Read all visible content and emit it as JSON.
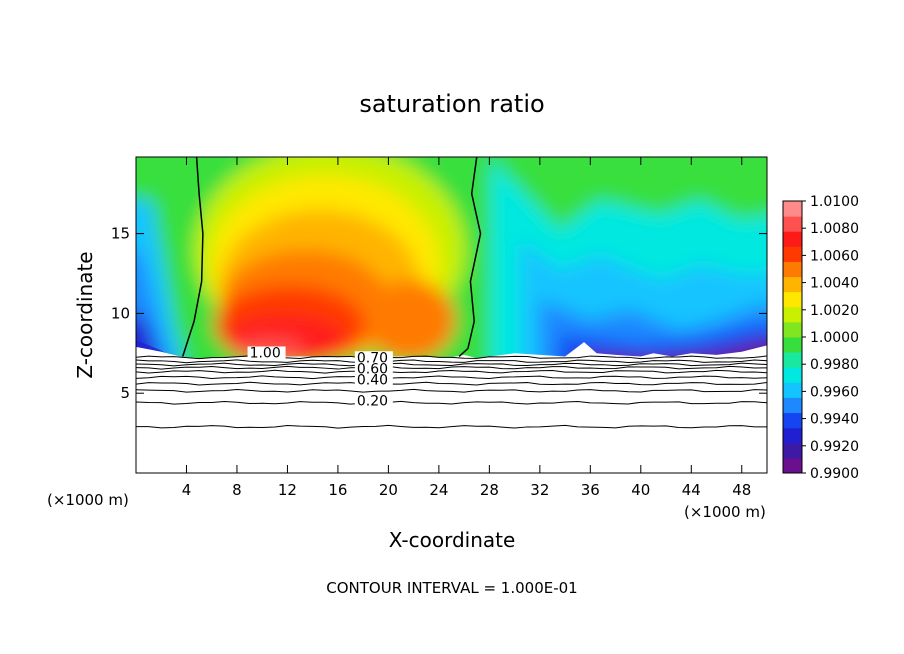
{
  "chart_data": {
    "type": "heatmap",
    "title": "saturation ratio",
    "xlabel": "X-coordinate",
    "ylabel": "Z-coordinate",
    "x_unit_left": "(×1000 m)",
    "x_unit_right": "(×1000 m)",
    "footer": "CONTOUR INTERVAL = 1.000E-01",
    "xlim": [
      0,
      50
    ],
    "ylim": [
      0,
      19.8
    ],
    "x_ticks": [
      4,
      8,
      12,
      16,
      20,
      24,
      28,
      32,
      36,
      40,
      44,
      48
    ],
    "y_ticks": [
      5,
      10,
      15
    ],
    "colorbar": {
      "min": 0.99,
      "max": 1.01,
      "tick_labels": [
        "1.0100",
        "1.0080",
        "1.0060",
        "1.0040",
        "1.0020",
        "1.0000",
        "0.9980",
        "0.9960",
        "0.9940",
        "0.9920",
        "0.9900"
      ],
      "levels": [
        "#6a0f8e",
        "#3d1aa6",
        "#2020d2",
        "#1545f0",
        "#1e88ff",
        "#14c4ff",
        "#00e8e0",
        "#18e8a0",
        "#37df3e",
        "#7fe620",
        "#c8f000",
        "#ffe800",
        "#ffb400",
        "#ff7a00",
        "#ff3a00",
        "#ff1a1a",
        "#ff5050",
        "#ff8a8a"
      ]
    },
    "contour_labels": [
      {
        "text": "1.00",
        "x": 9,
        "z": 7.3
      },
      {
        "text": "0.70",
        "x": 17.5,
        "z": 7.0
      },
      {
        "text": "0.60",
        "x": 17.5,
        "z": 6.3
      },
      {
        "text": "0.40",
        "x": 17.5,
        "z": 5.6
      },
      {
        "text": "0.20",
        "x": 17.5,
        "z": 4.3
      }
    ],
    "contour_heights": [
      7.25,
      7.0,
      6.8,
      6.6,
      6.35,
      6.0,
      5.6,
      5.15,
      4.4,
      2.9
    ],
    "contour_1_left": [
      [
        4.8,
        19.8
      ],
      [
        5.0,
        17.5
      ],
      [
        5.3,
        15.0
      ],
      [
        5.2,
        12.0
      ],
      [
        4.6,
        9.5
      ],
      [
        3.7,
        7.3
      ]
    ],
    "contour_1_right": [
      [
        27.0,
        19.8
      ],
      [
        26.6,
        17.5
      ],
      [
        27.3,
        15.0
      ],
      [
        26.5,
        12.0
      ],
      [
        26.8,
        9.5
      ],
      [
        26.3,
        7.8
      ],
      [
        25.6,
        7.3
      ]
    ],
    "terrain": [
      [
        0,
        7.9
      ],
      [
        2,
        7.6
      ],
      [
        3.5,
        7.3
      ],
      [
        5,
        7.2
      ],
      [
        10,
        7.3
      ],
      [
        15,
        7.3
      ],
      [
        20,
        7.3
      ],
      [
        25,
        7.25
      ],
      [
        26,
        7.4
      ],
      [
        27,
        7.2
      ],
      [
        30,
        7.5
      ],
      [
        32,
        7.4
      ],
      [
        34,
        7.3
      ],
      [
        35.5,
        8.2
      ],
      [
        36.5,
        7.5
      ],
      [
        38,
        7.4
      ],
      [
        40,
        7.3
      ],
      [
        41,
        7.5
      ],
      [
        42.5,
        7.3
      ],
      [
        44,
        7.5
      ],
      [
        46,
        7.4
      ],
      [
        48,
        7.6
      ],
      [
        50,
        8.0
      ]
    ]
  }
}
